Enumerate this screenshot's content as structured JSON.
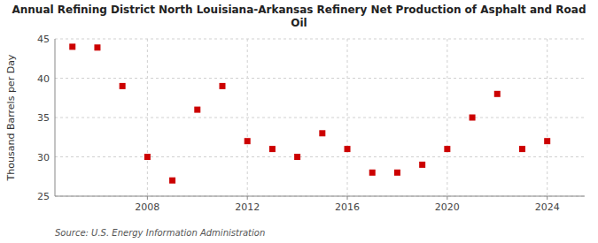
{
  "chart_data": {
    "type": "scatter",
    "title": "Annual Refining District North Louisiana-Arkansas Refinery Net Production of Asphalt and Road\nOil",
    "y_label": "Thousand Barrels per Day",
    "annotation": "Source: U.S. Energy Information Administration",
    "x": [
      2005,
      2006,
      2007,
      2008,
      2009,
      2010,
      2011,
      2012,
      2013,
      2014,
      2015,
      2016,
      2017,
      2018,
      2019,
      2020,
      2021,
      2022,
      2023,
      2024
    ],
    "values": [
      44.0,
      43.9,
      39.0,
      30.0,
      27.0,
      36.0,
      39.0,
      32.0,
      31.0,
      30.0,
      33.0,
      31.0,
      28.0,
      28.0,
      29.0,
      31.0,
      35.0,
      38.0,
      31.0,
      32.0
    ],
    "color": "#cc0000",
    "marker": "square",
    "xlim": [
      2004.3,
      2025.5
    ],
    "xticks": [
      2008,
      2012,
      2016,
      2020,
      2024
    ],
    "ylim": [
      25,
      45
    ],
    "yticks": [
      25,
      30,
      35,
      40,
      45
    ],
    "grid": true
  }
}
